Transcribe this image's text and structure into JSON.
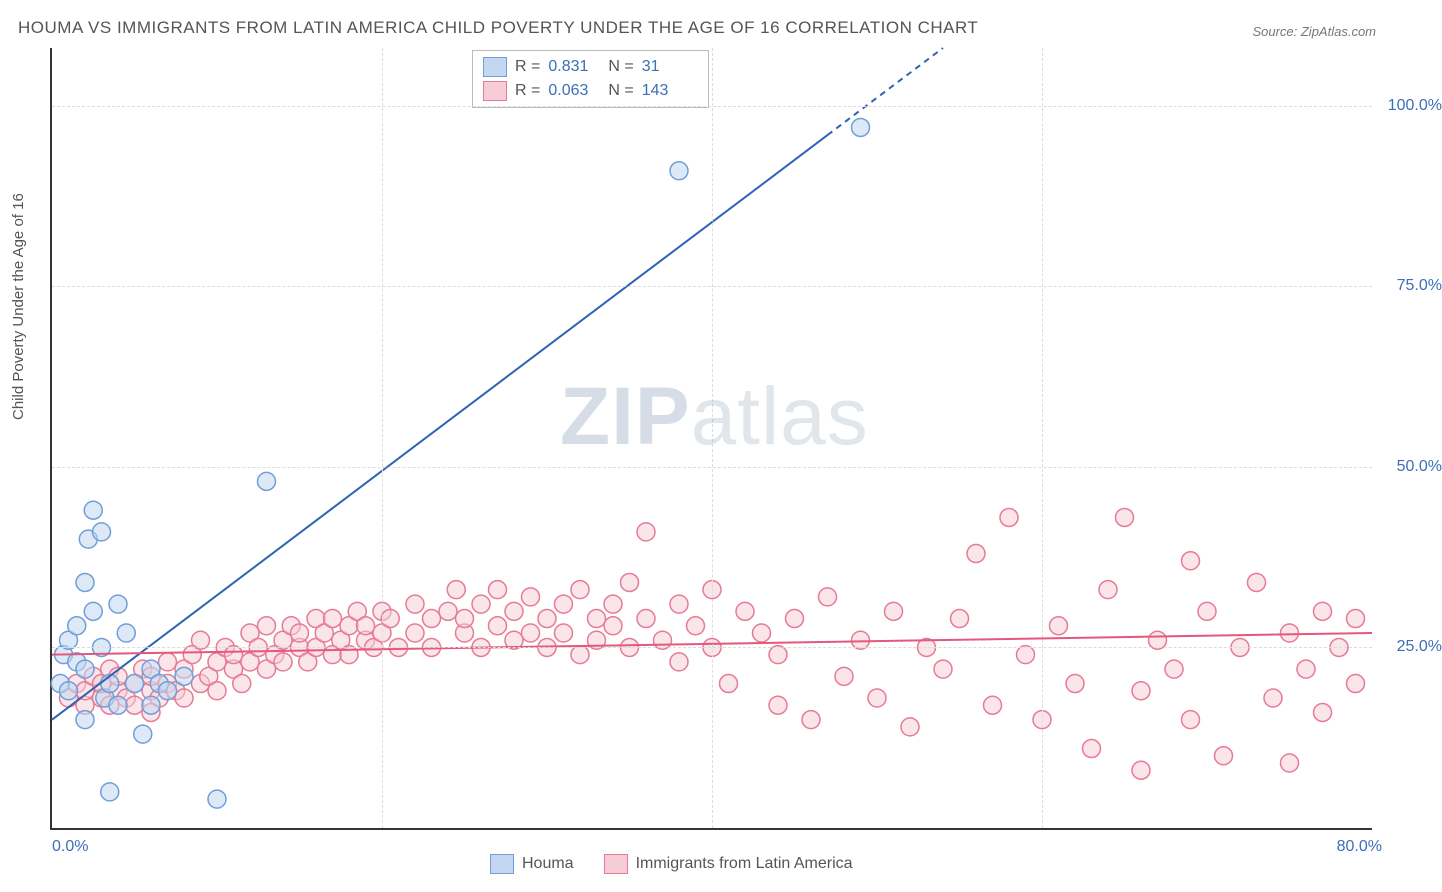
{
  "title": "HOUMA VS IMMIGRANTS FROM LATIN AMERICA CHILD POVERTY UNDER THE AGE OF 16 CORRELATION CHART",
  "source": "Source: ZipAtlas.com",
  "y_axis_label": "Child Poverty Under the Age of 16",
  "watermark_a": "ZIP",
  "watermark_b": "atlas",
  "chart": {
    "type": "scatter",
    "xlim": [
      0,
      80
    ],
    "ylim": [
      0,
      108
    ],
    "x_ticks": [
      0,
      20,
      40,
      60,
      80
    ],
    "x_tick_labels": [
      "0.0%",
      "",
      "",
      "",
      "80.0%"
    ],
    "y_ticks": [
      25,
      50,
      75,
      100
    ],
    "y_tick_labels": [
      "25.0%",
      "50.0%",
      "75.0%",
      "100.0%"
    ],
    "grid_color": "#dcdcdc",
    "background_color": "#ffffff",
    "axis_color": "#333333",
    "tick_label_color": "#3b6fb6",
    "marker_radius": 9,
    "marker_stroke_width": 1.5,
    "series": [
      {
        "name": "Houma",
        "fill": "#c3d7f0",
        "stroke": "#6f9fd8",
        "fill_opacity": 0.55,
        "stat_R_label": "R =",
        "stat_R": "0.831",
        "stat_N_label": "N =",
        "stat_N": "31",
        "trend": {
          "x1": 0,
          "y1": 15,
          "x2": 54,
          "y2": 108,
          "color": "#2d63b3",
          "width": 2,
          "dash_after_x": 47
        },
        "points": [
          [
            0.5,
            20
          ],
          [
            0.7,
            24
          ],
          [
            1,
            26
          ],
          [
            1,
            19
          ],
          [
            1.5,
            28
          ],
          [
            1.5,
            23
          ],
          [
            2,
            22
          ],
          [
            2,
            34
          ],
          [
            2.2,
            40
          ],
          [
            2.5,
            44
          ],
          [
            2.5,
            30
          ],
          [
            3,
            41
          ],
          [
            3,
            25
          ],
          [
            3.2,
            18
          ],
          [
            3.5,
            20
          ],
          [
            4,
            31
          ],
          [
            4,
            17
          ],
          [
            4.5,
            27
          ],
          [
            5,
            20
          ],
          [
            5.5,
            13
          ],
          [
            6,
            22
          ],
          [
            6,
            17
          ],
          [
            6.5,
            20
          ],
          [
            7,
            19
          ],
          [
            8,
            21
          ],
          [
            3.5,
            5
          ],
          [
            10,
            4
          ],
          [
            13,
            48
          ],
          [
            38,
            91
          ],
          [
            49,
            97
          ],
          [
            2,
            15
          ]
        ]
      },
      {
        "name": "Immigrants from Latin America",
        "fill": "#f6cdd6",
        "stroke": "#e77a95",
        "fill_opacity": 0.5,
        "stat_R_label": "R =",
        "stat_R": "0.063",
        "stat_N_label": "N =",
        "stat_N": "143",
        "trend": {
          "x1": 0,
          "y1": 24,
          "x2": 80,
          "y2": 27,
          "color": "#e5577d",
          "width": 2
        },
        "points": [
          [
            1,
            18
          ],
          [
            1.5,
            20
          ],
          [
            2,
            17
          ],
          [
            2,
            19
          ],
          [
            2.5,
            21
          ],
          [
            3,
            18
          ],
          [
            3,
            20
          ],
          [
            3.5,
            17
          ],
          [
            3.5,
            22
          ],
          [
            4,
            19
          ],
          [
            4,
            21
          ],
          [
            4.5,
            18
          ],
          [
            5,
            20
          ],
          [
            5,
            17
          ],
          [
            5.5,
            22
          ],
          [
            6,
            19
          ],
          [
            6,
            21
          ],
          [
            6.5,
            18
          ],
          [
            7,
            23
          ],
          [
            7,
            20
          ],
          [
            7.5,
            19
          ],
          [
            8,
            22
          ],
          [
            8,
            18
          ],
          [
            8.5,
            24
          ],
          [
            9,
            20
          ],
          [
            9,
            26
          ],
          [
            9.5,
            21
          ],
          [
            10,
            23
          ],
          [
            10,
            19
          ],
          [
            10.5,
            25
          ],
          [
            11,
            22
          ],
          [
            11,
            24
          ],
          [
            11.5,
            20
          ],
          [
            12,
            27
          ],
          [
            12,
            23
          ],
          [
            12.5,
            25
          ],
          [
            13,
            22
          ],
          [
            13,
            28
          ],
          [
            13.5,
            24
          ],
          [
            14,
            26
          ],
          [
            14,
            23
          ],
          [
            14.5,
            28
          ],
          [
            15,
            25
          ],
          [
            15,
            27
          ],
          [
            15.5,
            23
          ],
          [
            16,
            29
          ],
          [
            16,
            25
          ],
          [
            16.5,
            27
          ],
          [
            17,
            24
          ],
          [
            17,
            29
          ],
          [
            17.5,
            26
          ],
          [
            18,
            28
          ],
          [
            18,
            24
          ],
          [
            18.5,
            30
          ],
          [
            19,
            26
          ],
          [
            19,
            28
          ],
          [
            19.5,
            25
          ],
          [
            20,
            30
          ],
          [
            20,
            27
          ],
          [
            20.5,
            29
          ],
          [
            21,
            25
          ],
          [
            22,
            31
          ],
          [
            22,
            27
          ],
          [
            23,
            29
          ],
          [
            23,
            25
          ],
          [
            24,
            30
          ],
          [
            24.5,
            33
          ],
          [
            25,
            27
          ],
          [
            25,
            29
          ],
          [
            26,
            25
          ],
          [
            26,
            31
          ],
          [
            27,
            28
          ],
          [
            27,
            33
          ],
          [
            28,
            26
          ],
          [
            28,
            30
          ],
          [
            29,
            27
          ],
          [
            29,
            32
          ],
          [
            30,
            25
          ],
          [
            30,
            29
          ],
          [
            31,
            31
          ],
          [
            31,
            27
          ],
          [
            32,
            33
          ],
          [
            32,
            24
          ],
          [
            33,
            29
          ],
          [
            33,
            26
          ],
          [
            34,
            31
          ],
          [
            34,
            28
          ],
          [
            35,
            25
          ],
          [
            35,
            34
          ],
          [
            36,
            41
          ],
          [
            36,
            29
          ],
          [
            37,
            26
          ],
          [
            38,
            31
          ],
          [
            38,
            23
          ],
          [
            39,
            28
          ],
          [
            40,
            33
          ],
          [
            40,
            25
          ],
          [
            41,
            20
          ],
          [
            42,
            30
          ],
          [
            43,
            27
          ],
          [
            44,
            17
          ],
          [
            44,
            24
          ],
          [
            45,
            29
          ],
          [
            46,
            15
          ],
          [
            47,
            32
          ],
          [
            48,
            21
          ],
          [
            49,
            26
          ],
          [
            50,
            18
          ],
          [
            51,
            30
          ],
          [
            52,
            14
          ],
          [
            53,
            25
          ],
          [
            54,
            22
          ],
          [
            55,
            29
          ],
          [
            56,
            38
          ],
          [
            57,
            17
          ],
          [
            58,
            43
          ],
          [
            59,
            24
          ],
          [
            60,
            15
          ],
          [
            61,
            28
          ],
          [
            62,
            20
          ],
          [
            63,
            11
          ],
          [
            64,
            33
          ],
          [
            65,
            43
          ],
          [
            66,
            19
          ],
          [
            66,
            8
          ],
          [
            67,
            26
          ],
          [
            68,
            22
          ],
          [
            69,
            15
          ],
          [
            69,
            37
          ],
          [
            70,
            30
          ],
          [
            71,
            10
          ],
          [
            72,
            25
          ],
          [
            73,
            34
          ],
          [
            74,
            18
          ],
          [
            75,
            9
          ],
          [
            75,
            27
          ],
          [
            76,
            22
          ],
          [
            77,
            30
          ],
          [
            77,
            16
          ],
          [
            78,
            25
          ],
          [
            79,
            20
          ],
          [
            79,
            29
          ],
          [
            6,
            16
          ]
        ]
      }
    ]
  },
  "legend": {
    "item1": "Houma",
    "item2": "Immigrants from Latin America"
  }
}
